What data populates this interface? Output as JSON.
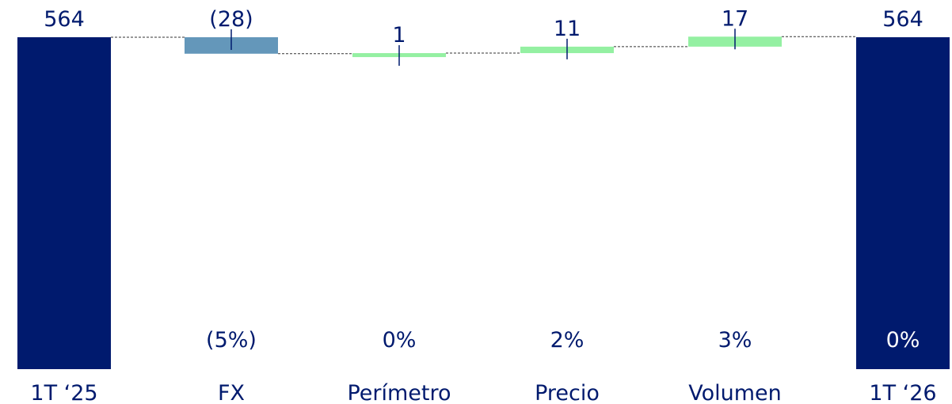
{
  "chart_data": {
    "type": "waterfall",
    "categories": [
      "1T ‘25",
      "FX",
      "Perímetro",
      "Precio",
      "Volumen",
      "1T ‘26"
    ],
    "kinds": [
      "total",
      "delta",
      "delta",
      "delta",
      "delta",
      "total"
    ],
    "values": [
      564,
      -28,
      1,
      11,
      17,
      564
    ],
    "value_labels": [
      "564",
      "(28)",
      "1",
      "11",
      "17",
      "564"
    ],
    "pct_labels": [
      "",
      "(5%)",
      "0%",
      "2%",
      "3%",
      "0%"
    ],
    "ylim": [
      0,
      564
    ],
    "colors": {
      "total": "#001A6E",
      "negative": "#6497BA",
      "positive": "#94F0A2",
      "text": "#001A6E",
      "pct_on_dark": "#FFFFFF",
      "connector": "#333333"
    }
  }
}
